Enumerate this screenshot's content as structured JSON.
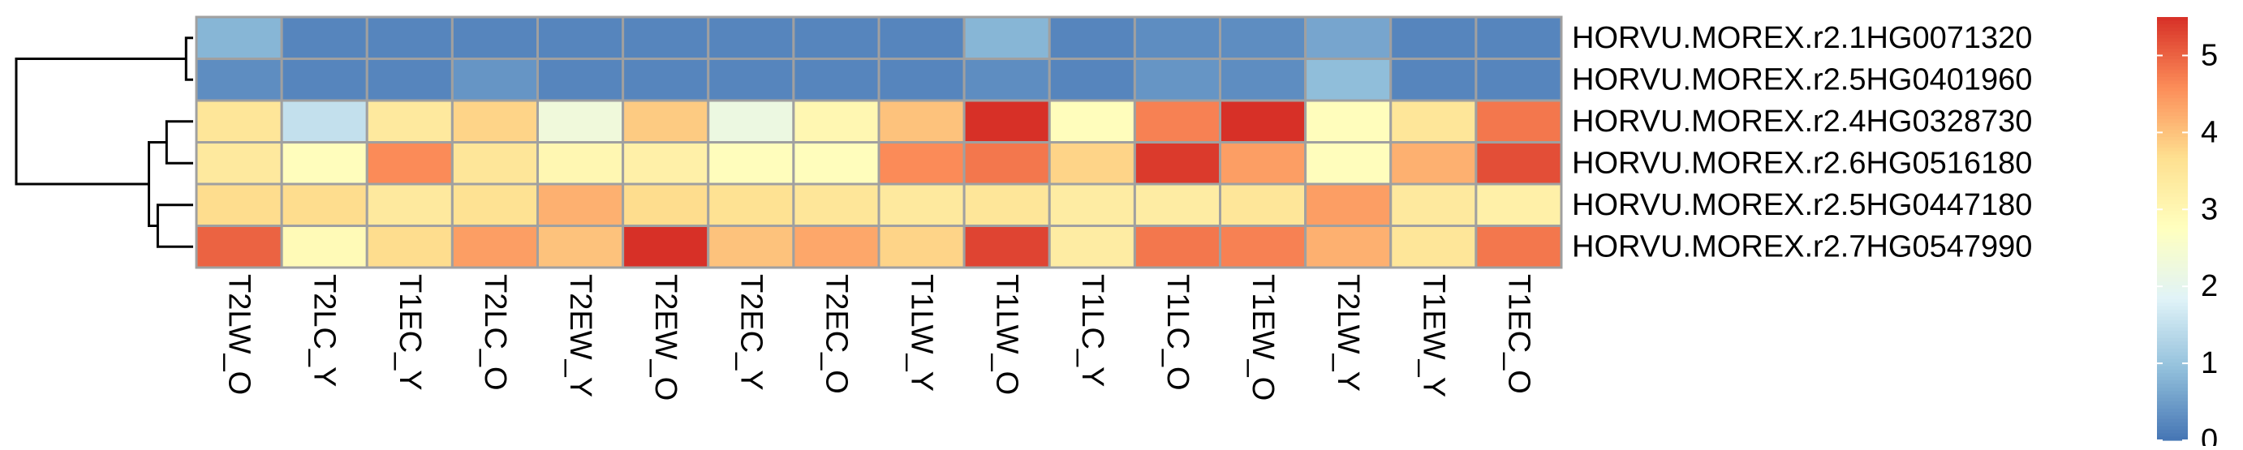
{
  "chart_data": {
    "type": "heatmap",
    "title": "",
    "xlabel": "",
    "ylabel": "",
    "columns": [
      "T2LW_O",
      "T2LC_Y",
      "T1EC_Y",
      "T2LC_O",
      "T2EW_Y",
      "T2EW_O",
      "T2EC_Y",
      "T2EC_O",
      "T1LW_Y",
      "T1LW_O",
      "T1LC_Y",
      "T1LC_O",
      "T1EW_O",
      "T2LW_Y",
      "T1EW_Y",
      "T1EC_O"
    ],
    "rows": [
      "HORVU.MOREX.r2.1HG0071320",
      "HORVU.MOREX.r2.5HG0401960",
      "HORVU.MOREX.r2.4HG0328730",
      "HORVU.MOREX.r2.6HG0516180",
      "HORVU.MOREX.r2.5HG0447180",
      "HORVU.MOREX.r2.7HG0547990"
    ],
    "values": [
      [
        0.8,
        0.2,
        0.2,
        0.2,
        0.2,
        0.2,
        0.2,
        0.2,
        0.2,
        0.8,
        0.2,
        0.3,
        0.3,
        0.6,
        0.2,
        0.2
      ],
      [
        0.3,
        0.2,
        0.2,
        0.4,
        0.2,
        0.2,
        0.2,
        0.2,
        0.2,
        0.3,
        0.2,
        0.4,
        0.3,
        0.9,
        0.2,
        0.2
      ],
      [
        3.5,
        1.5,
        3.4,
        3.8,
        2.3,
        3.9,
        2.2,
        3.0,
        4.0,
        5.6,
        2.8,
        4.7,
        5.6,
        2.8,
        3.5,
        4.8
      ],
      [
        3.4,
        2.8,
        4.6,
        3.5,
        3.0,
        3.2,
        2.8,
        2.8,
        4.6,
        4.8,
        3.8,
        5.4,
        4.4,
        2.8,
        4.2,
        5.2
      ],
      [
        3.7,
        3.7,
        3.4,
        3.6,
        4.2,
        3.7,
        3.6,
        3.5,
        3.4,
        3.5,
        3.3,
        3.3,
        3.5,
        4.4,
        3.4,
        3.2
      ],
      [
        5.0,
        2.9,
        3.7,
        4.4,
        4.0,
        5.5,
        4.0,
        4.3,
        3.8,
        5.3,
        3.3,
        4.8,
        4.7,
        4.2,
        3.5,
        4.8
      ]
    ],
    "color_scale": {
      "min": 0,
      "max": 5.5,
      "ticks": [
        0,
        1,
        2,
        3,
        4,
        5
      ],
      "colors": [
        "#4575b4",
        "#91bfdb",
        "#e0f3f8",
        "#ffffbf",
        "#fee090",
        "#fc8d59",
        "#d73027"
      ]
    },
    "row_dendrogram": {
      "merges": [
        [
          0,
          1,
          0.4
        ],
        [
          2,
          3,
          1.5
        ],
        [
          4,
          5,
          2.0
        ],
        [
          7,
          8,
          2.5
        ],
        [
          6,
          9,
          10.0
        ]
      ],
      "max_height": 10.0
    },
    "cell_border_color": "#a0a0a0",
    "grid": true,
    "legend_placement": "right"
  }
}
